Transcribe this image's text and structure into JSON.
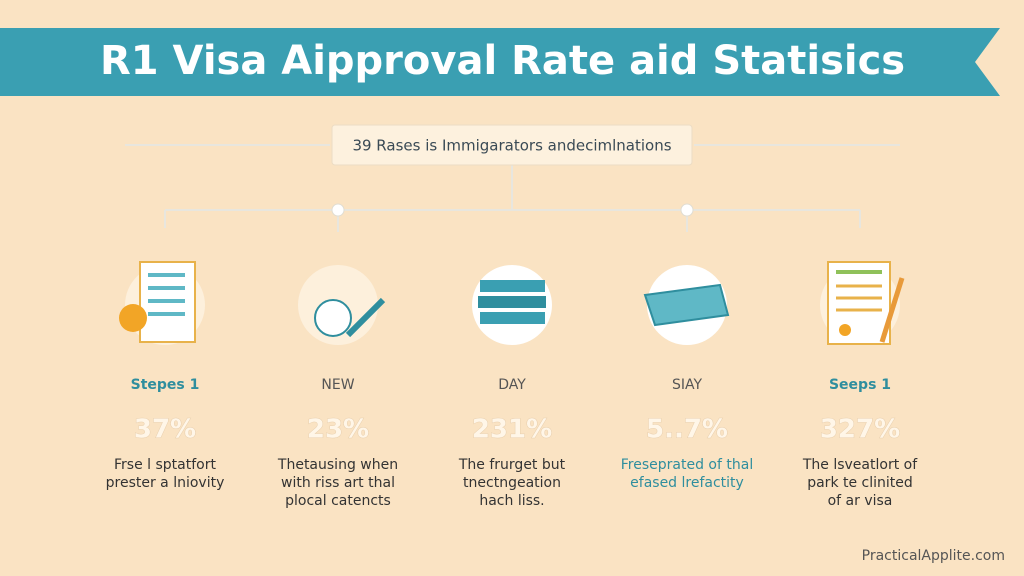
{
  "header": {
    "title": "R1  Visa Aipproval Rate aid Statisics"
  },
  "subtitle": "39 Rases is Immigarators andecimlnations",
  "columns": [
    {
      "label": "Stepes 1",
      "value": "37%",
      "description": [
        "Frse l sptatfort",
        "prester a lniovity"
      ]
    },
    {
      "label": "NEW",
      "value": "23%",
      "description": [
        "Thetausing when",
        "with riss art thal",
        "plocal catencts"
      ]
    },
    {
      "label": "DAY",
      "value": "231%",
      "description": [
        "The frurget but",
        "tnectngeation",
        "hach liss."
      ]
    },
    {
      "label": "SIAY",
      "value": "5..7%",
      "description": [
        "Freseprated of thal",
        "efased lrefactity"
      ]
    },
    {
      "label": "Seeps 1",
      "value": "327%",
      "description": [
        "The lsveatlort of",
        "park te clinited",
        "of ar visa"
      ]
    }
  ],
  "footer": "PracticalApplite.com"
}
